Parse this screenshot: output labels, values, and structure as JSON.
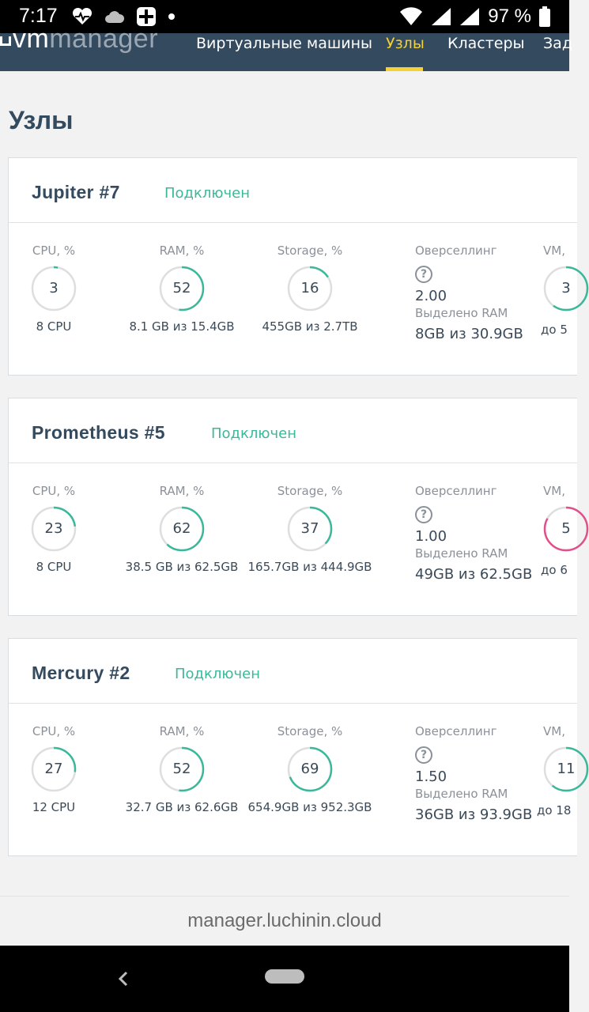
{
  "status_bar": {
    "time": "7:17",
    "battery": "97 %"
  },
  "nav": {
    "logo_vm": "vm",
    "logo_manager": "manager",
    "items": [
      {
        "label": "Виртуальные машины"
      },
      {
        "label": "Узлы"
      },
      {
        "label": "Кластеры"
      },
      {
        "label": "Зад"
      }
    ],
    "active": "Узлы",
    "accent": "#f4d135"
  },
  "page": {
    "title": "Узлы"
  },
  "labels": {
    "cpu": "CPU, %",
    "ram": "RAM, %",
    "storage": "Storage, %",
    "overselling": "Оверселлинг",
    "allocated_ram": "Выделено RAM",
    "vm": "VM,"
  },
  "nodes": [
    {
      "name": "Jupiter  #7",
      "status": "Подключен",
      "cpu": {
        "value": "3",
        "sub": "8 CPU"
      },
      "ram": {
        "value": "52",
        "sub": "8.1 GB из 15.4GB"
      },
      "storage": {
        "value": "16",
        "sub": "455GB из 2.7TB"
      },
      "overselling": "2.00",
      "allocated_ram": "8GB из 30.9GB",
      "vm": {
        "value": "3",
        "sub": "до 5"
      }
    },
    {
      "name": "Prometheus  #5",
      "status": "Подключен",
      "cpu": {
        "value": "23",
        "sub": "8 CPU"
      },
      "ram": {
        "value": "62",
        "sub": "38.5 GB из 62.5GB"
      },
      "storage": {
        "value": "37",
        "sub": "165.7GB из 444.9GB"
      },
      "overselling": "1.00",
      "allocated_ram": "49GB из 62.5GB",
      "vm": {
        "value": "5",
        "sub": "до 6"
      }
    },
    {
      "name": "Mercury  #2",
      "status": "Подключен",
      "cpu": {
        "value": "27",
        "sub": "12 CPU"
      },
      "ram": {
        "value": "52",
        "sub": "32.7 GB из 62.6GB"
      },
      "storage": {
        "value": "69",
        "sub": "654.9GB из 952.3GB"
      },
      "overselling": "1.50",
      "allocated_ram": "36GB из 93.9GB",
      "vm": {
        "value": "11",
        "sub": "до 18"
      }
    }
  ],
  "colors": {
    "ok": "#3bb89a",
    "warn": "#e0508a",
    "track": "#dedede",
    "nav_bg": "#344a5f"
  },
  "url": "manager.luchinin.cloud"
}
